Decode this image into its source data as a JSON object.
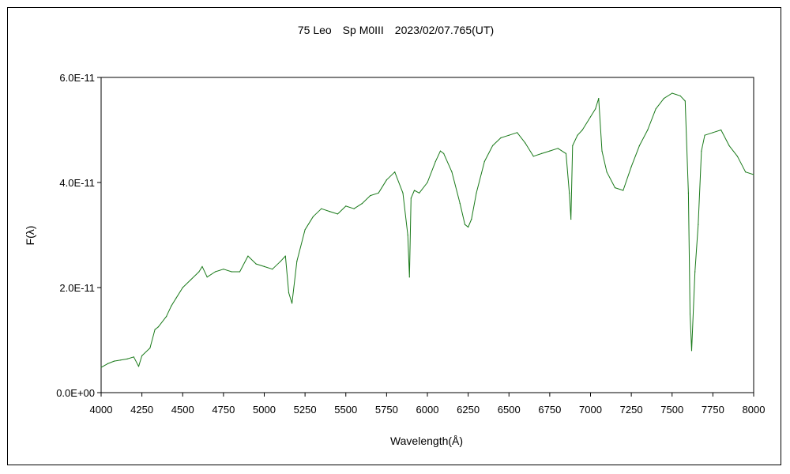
{
  "chart_data": {
    "type": "line",
    "title": "75 Leo　Sp M0III　2023/02/07.765(UT)",
    "xlabel": "Wavelength(Å)",
    "ylabel": "F(λ)",
    "xlim": [
      4000,
      8000
    ],
    "ylim": [
      0,
      6e-11
    ],
    "x_ticks": [
      4000,
      4250,
      4500,
      4750,
      5000,
      5250,
      5500,
      5750,
      6000,
      6250,
      6500,
      6750,
      7000,
      7250,
      7500,
      7750,
      8000
    ],
    "x_tick_labels": [
      "4000",
      "4250",
      "4500",
      "4750",
      "5000",
      "5250",
      "5500",
      "5750",
      "6000",
      "6250",
      "6500",
      "6750",
      "7000",
      "7250",
      "7500",
      "7750",
      "8000"
    ],
    "y_ticks": [
      0,
      2e-11,
      4e-11,
      6e-11
    ],
    "y_tick_labels": [
      "0.0E+00",
      "2.0E-11",
      "4.0E-11",
      "6.0E-11"
    ],
    "grid": false,
    "legend": "none",
    "series_color": "#1a7a1a",
    "series": [
      {
        "x": [
          4000,
          4040,
          4080,
          4120,
          4160,
          4200,
          4230,
          4250,
          4300,
          4330,
          4350,
          4400,
          4430,
          4460,
          4500,
          4550,
          4600,
          4620,
          4650,
          4700,
          4750,
          4800,
          4850,
          4900,
          4950,
          5000,
          5050,
          5100,
          5130,
          5150,
          5170,
          5200,
          5250,
          5300,
          5350,
          5400,
          5450,
          5500,
          5550,
          5600,
          5650,
          5700,
          5750,
          5800,
          5850,
          5880,
          5890,
          5900,
          5920,
          5950,
          6000,
          6050,
          6080,
          6100,
          6150,
          6200,
          6230,
          6250,
          6270,
          6300,
          6350,
          6400,
          6450,
          6500,
          6550,
          6600,
          6650,
          6700,
          6750,
          6800,
          6850,
          6870,
          6880,
          6890,
          6920,
          6950,
          7000,
          7030,
          7050,
          7070,
          7100,
          7150,
          7200,
          7250,
          7300,
          7350,
          7400,
          7450,
          7500,
          7550,
          7580,
          7600,
          7610,
          7620,
          7640,
          7660,
          7680,
          7700,
          7750,
          7800,
          7850,
          7900,
          7950,
          8000
        ],
        "y": [
          4.8e-12,
          5.5e-12,
          6e-12,
          6.2e-12,
          6.4e-12,
          6.8e-12,
          5e-12,
          7e-12,
          8.5e-12,
          1.2e-11,
          1.25e-11,
          1.45e-11,
          1.65e-11,
          1.8e-11,
          2e-11,
          2.15e-11,
          2.3e-11,
          2.4e-11,
          2.2e-11,
          2.3e-11,
          2.35e-11,
          2.3e-11,
          2.3e-11,
          2.6e-11,
          2.45e-11,
          2.4e-11,
          2.35e-11,
          2.5e-11,
          2.6e-11,
          1.9e-11,
          1.7e-11,
          2.5e-11,
          3.1e-11,
          3.35e-11,
          3.5e-11,
          3.45e-11,
          3.4e-11,
          3.55e-11,
          3.5e-11,
          3.6e-11,
          3.75e-11,
          3.8e-11,
          4.05e-11,
          4.2e-11,
          3.8e-11,
          3e-11,
          2.2e-11,
          3.7e-11,
          3.85e-11,
          3.8e-11,
          4e-11,
          4.4e-11,
          4.6e-11,
          4.55e-11,
          4.2e-11,
          3.6e-11,
          3.2e-11,
          3.15e-11,
          3.3e-11,
          3.8e-11,
          4.4e-11,
          4.7e-11,
          4.85e-11,
          4.9e-11,
          4.95e-11,
          4.75e-11,
          4.5e-11,
          4.55e-11,
          4.6e-11,
          4.65e-11,
          4.55e-11,
          3.8e-11,
          3.3e-11,
          4.7e-11,
          4.9e-11,
          5e-11,
          5.25e-11,
          5.4e-11,
          5.6e-11,
          4.6e-11,
          4.2e-11,
          3.9e-11,
          3.85e-11,
          4.3e-11,
          4.7e-11,
          5e-11,
          5.4e-11,
          5.6e-11,
          5.7e-11,
          5.65e-11,
          5.55e-11,
          3.8e-11,
          1.5e-11,
          8e-12,
          2.3e-11,
          3.2e-11,
          4.6e-11,
          4.9e-11,
          4.95e-11,
          5e-11,
          4.7e-11,
          4.5e-11,
          4.2e-11,
          4.15e-11
        ]
      }
    ]
  }
}
